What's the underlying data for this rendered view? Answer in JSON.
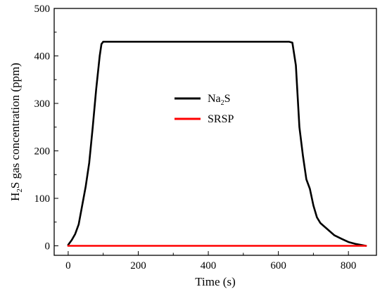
{
  "chart_data": {
    "type": "line",
    "title": "",
    "xlabel": "Time (s)",
    "ylabel_parts": [
      "H",
      "2",
      "S gas concentration (ppm)"
    ],
    "xlim": [
      -40,
      880
    ],
    "ylim": [
      -20,
      500
    ],
    "xticks": [
      0,
      200,
      400,
      600,
      800
    ],
    "yticks": [
      0,
      100,
      200,
      300,
      400,
      500
    ],
    "minor_x_step": 100,
    "minor_y_step": 50,
    "legend": {
      "placement": "center",
      "entries": [
        {
          "parts": [
            "Na",
            "2",
            "S"
          ],
          "color": "#000000"
        },
        {
          "parts": [
            "SRSP"
          ],
          "color": "#ff0000"
        }
      ]
    },
    "series": [
      {
        "name": "Na2S",
        "color": "#000000",
        "x": [
          0,
          10,
          20,
          30,
          40,
          50,
          60,
          70,
          80,
          90,
          95,
          100,
          110,
          200,
          300,
          400,
          500,
          600,
          630,
          640,
          650,
          660,
          670,
          680,
          690,
          700,
          710,
          720,
          740,
          760,
          780,
          800,
          820,
          835,
          850
        ],
        "y": [
          2,
          12,
          25,
          45,
          85,
          125,
          175,
          250,
          330,
          400,
          425,
          430,
          430,
          430,
          430,
          430,
          430,
          430,
          430,
          428,
          380,
          250,
          190,
          140,
          120,
          85,
          60,
          48,
          35,
          22,
          15,
          8,
          4,
          2,
          0
        ]
      },
      {
        "name": "SRSP",
        "color": "#ff0000",
        "x": [
          0,
          200,
          400,
          600,
          800,
          850
        ],
        "y": [
          0,
          0,
          0,
          0,
          0,
          0
        ]
      }
    ]
  }
}
